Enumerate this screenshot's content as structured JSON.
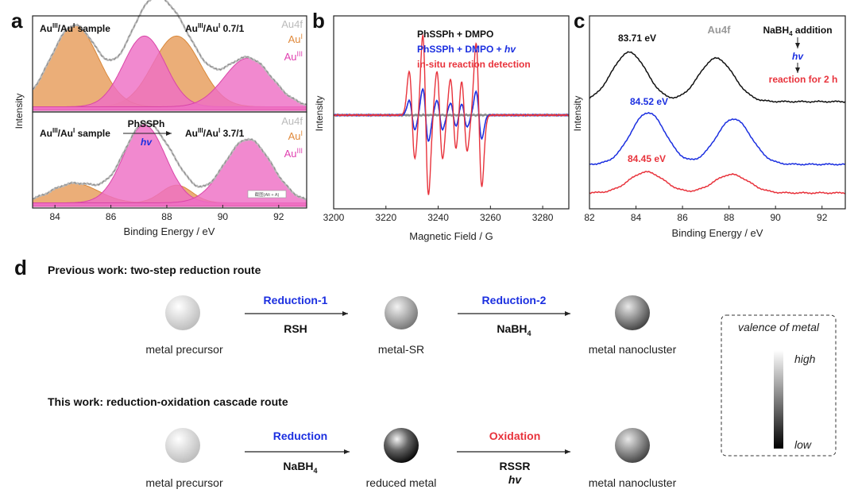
{
  "panel_letters": {
    "a": "a",
    "b": "b",
    "c": "c",
    "d": "d"
  },
  "colors": {
    "orange": "#E8A060",
    "orange_dark": "#D9883A",
    "pink": "#EE6FC4",
    "pink_dark": "#D946A8",
    "envelope": "#BBBBBB",
    "blue": "#1B2FE0",
    "red": "#E8333C",
    "black": "#111111",
    "gray": "#999999",
    "au4f": "#BBBBBB"
  },
  "chart_data": [
    {
      "id": "a-top",
      "type": "line",
      "xlabel": "Binding Energy / eV",
      "ylabel": "Intensity",
      "xlim": [
        83.2,
        93
      ],
      "ylim": [
        0,
        1.05
      ],
      "ticks": [
        "84",
        "86",
        "88",
        "90",
        "92"
      ],
      "texts": {
        "sample_sup": "III",
        "sample_mid": "/Au",
        "sample_sup2": "I",
        "sample_end": " sample",
        "ratio_sup": "III",
        "ratio_mid": "/Au",
        "ratio_sup2": "I",
        "ratio_end": " 0.7/1",
        "legend_au4f": "Au4f",
        "legend_aui": "Au",
        "legend_aui_sup": "I",
        "legend_auiii": "Au",
        "legend_auiii_sup": "III"
      },
      "peaks": [
        {
          "type": "AuI",
          "center": 84.7,
          "height": 0.92,
          "width": 0.85
        },
        {
          "type": "AuI",
          "center": 88.35,
          "height": 0.8,
          "width": 0.85
        },
        {
          "type": "AuIII",
          "center": 87.2,
          "height": 0.8,
          "width": 0.75
        },
        {
          "type": "AuIII",
          "center": 90.9,
          "height": 0.55,
          "width": 0.85
        }
      ]
    },
    {
      "id": "a-bottom",
      "type": "line",
      "xlabel": "Binding Energy / eV",
      "ylabel": "",
      "xlim": [
        83.2,
        93
      ],
      "ylim": [
        0,
        1.05
      ],
      "ticks": [
        "84",
        "86",
        "88",
        "90",
        "92"
      ],
      "texts": {
        "sample_sup": "III",
        "sample_mid": "/Au",
        "sample_sup2": "I",
        "sample_end": " sample",
        "arrow_label": "PhSSPh",
        "arrow_hv": "hv",
        "ratio_sup": "III",
        "ratio_mid": "/Au",
        "ratio_sup2": "I",
        "ratio_end": " 3.7/1",
        "legend_au4f": "Au4f",
        "legend_aui": "Au",
        "legend_aui_sup": "I",
        "legend_auiii": "Au",
        "legend_auiii_sup": "III",
        "tiny_label": "截图(Alt + A)"
      },
      "peaks": [
        {
          "type": "AuI",
          "center": 84.7,
          "height": 0.22,
          "width": 0.85
        },
        {
          "type": "AuI",
          "center": 88.35,
          "height": 0.2,
          "width": 0.55
        },
        {
          "type": "AuIII",
          "center": 87.2,
          "height": 0.88,
          "width": 0.75
        },
        {
          "type": "AuIII",
          "center": 90.9,
          "height": 0.72,
          "width": 0.85
        }
      ]
    },
    {
      "id": "b",
      "type": "line",
      "xlabel": "Magnetic Field / G",
      "ylabel": "Intensity",
      "xlim": [
        3200,
        3290
      ],
      "ylim": [
        -1.05,
        1.05
      ],
      "ticks": [
        "3200",
        "3220",
        "3240",
        "3260",
        "3280"
      ],
      "legend": [
        "PhSSPh + DMPO",
        "PhSSPh + DMPO + ",
        "hv",
        "in-situ reaction detection"
      ],
      "series": [
        {
          "name": "PhSSPh + DMPO",
          "color": "#888888",
          "amp": 0.03
        },
        {
          "name": "PhSSPh + DMPO + hv",
          "color": "#1B2FE0",
          "amp": 0.33
        },
        {
          "name": "in-situ reaction detection",
          "color": "#E8333C",
          "amp": 1.0
        }
      ],
      "lines": [
        3230.0,
        3235.2,
        3240.6,
        3245.8,
        3250.0,
        3255.6
      ],
      "line_intensities": [
        0.55,
        1.0,
        0.55,
        0.45,
        0.45,
        0.9
      ]
    },
    {
      "id": "c",
      "type": "line",
      "xlabel": "Binding Energy / eV",
      "ylabel": "Intensity",
      "xlim": [
        82,
        93
      ],
      "ylim": [
        0,
        1
      ],
      "ticks": [
        "82",
        "84",
        "86",
        "88",
        "90",
        "92"
      ],
      "legend_title": "Au4f",
      "notes": {
        "addition": "NaBH",
        "addition_sub": "4",
        "addition_end": " addition",
        "hv": "hv",
        "reaction": "reaction for 2 h"
      },
      "series": [
        {
          "name": "black",
          "label": "83.71 eV",
          "color": "#111111",
          "p1": 83.71,
          "p2": 87.45,
          "h": 0.2
        },
        {
          "name": "blue",
          "label": "84.52 eV",
          "color": "#1B2FE0",
          "p1": 84.52,
          "p2": 88.2,
          "h": 0.21
        },
        {
          "name": "red",
          "label": "84.45 eV",
          "color": "#E8333C",
          "p1": 84.45,
          "p2": 88.1,
          "h": 0.085
        }
      ]
    }
  ],
  "scheme": {
    "previous_title": "Previous work: two-step reduction route",
    "this_title": "This work: reduction-oxidation cascade route",
    "row1": {
      "s1": "metal precursor",
      "s2": "metal-SR",
      "s3": "metal nanocluster",
      "a1_top": "Reduction-1",
      "a1_bottom": "RSH",
      "a2_top": "Reduction-2",
      "a2_bottom": "NaBH",
      "a2_sub": "4"
    },
    "row2": {
      "s1": "metal precursor",
      "s2": "reduced metal",
      "s3": "metal nanocluster",
      "a1_top": "Reduction",
      "a1_bottom": "NaBH",
      "a1_sub": "4",
      "a2_top": "Oxidation",
      "a2_bottom": "RSSR",
      "a2_hv": "hv"
    },
    "legend": {
      "title": "valence of metal",
      "high": "high",
      "low": "low"
    }
  }
}
